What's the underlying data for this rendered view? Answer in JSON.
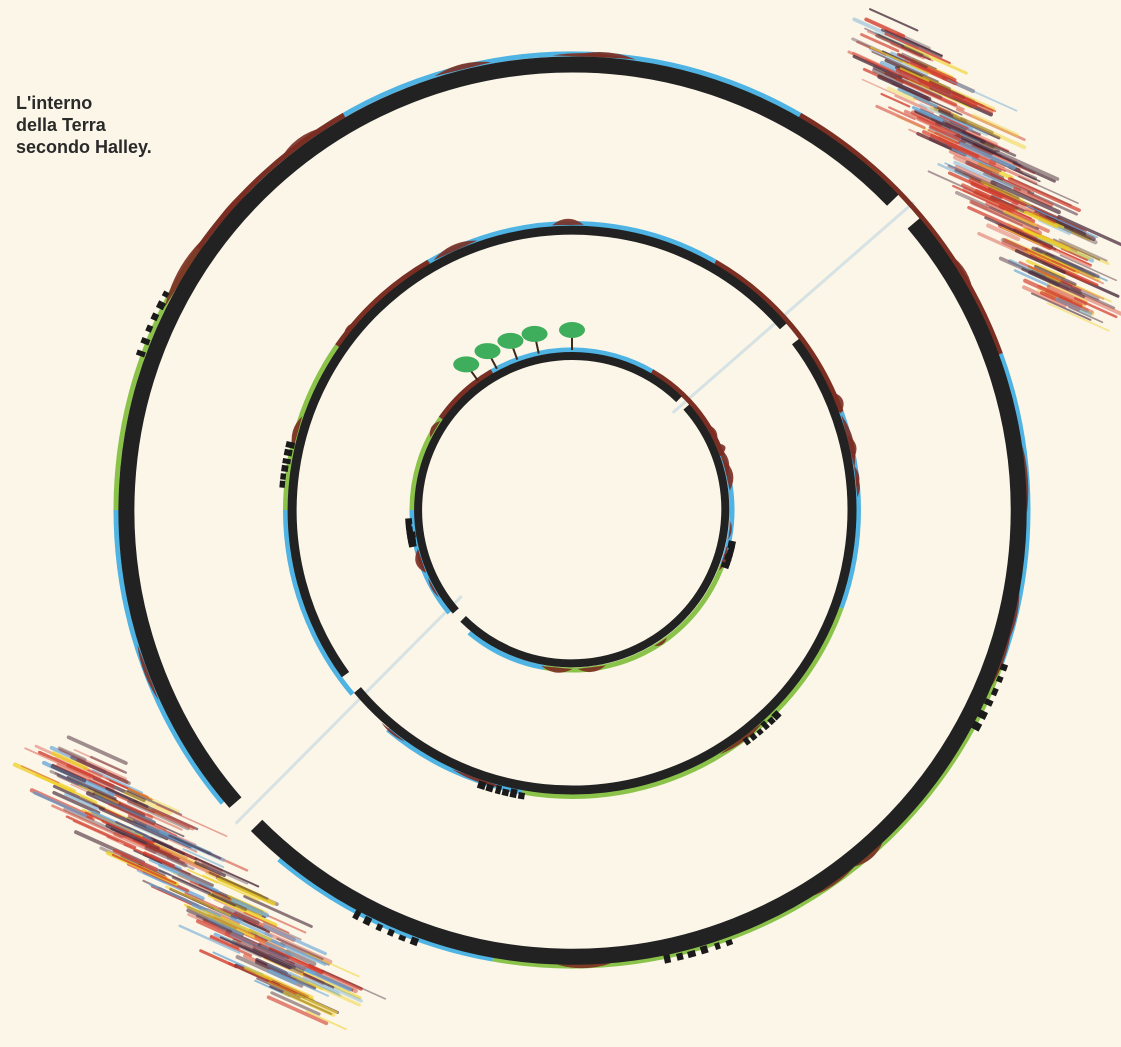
{
  "caption": {
    "lines": [
      "L'interno",
      "della Terra",
      "secondo Halley."
    ]
  },
  "colors": {
    "paper": "#fbf6e8",
    "shell": "#222222",
    "ocean": "#4fb3e3",
    "land": "#8bc34a",
    "mountain": "#7b2e22",
    "sand": "#f2d53c",
    "tree": "#3fae5c",
    "aurora_red": "#d23a2a",
    "aurora_dark": "#4a2a3a",
    "aurora_yellow": "#f0d020",
    "aurora_blue": "#6aa8d8"
  },
  "shells": [
    {
      "name": "outer-shell",
      "label": "outer shell"
    },
    {
      "name": "middle-shell",
      "label": "middle shell"
    },
    {
      "name": "inner-shell",
      "label": "inner shell"
    }
  ],
  "aurorae": [
    {
      "name": "aurora-north-east"
    },
    {
      "name": "aurora-south-west"
    }
  ]
}
